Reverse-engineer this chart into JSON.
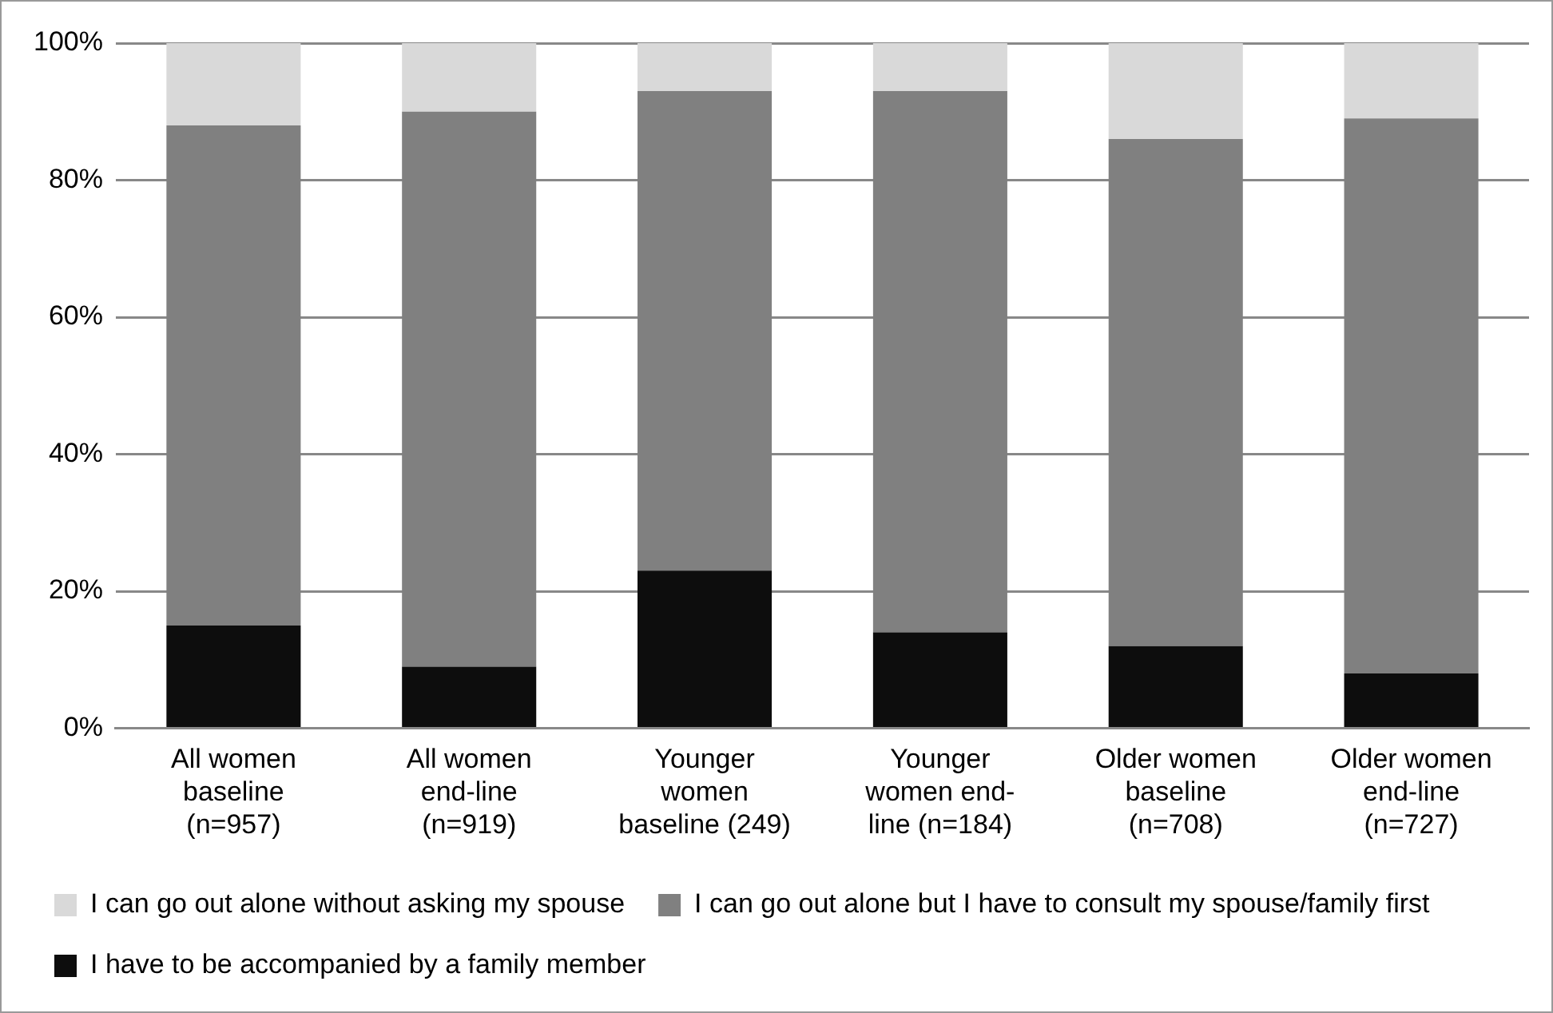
{
  "chart_data": {
    "type": "bar",
    "stacked": true,
    "categories": [
      "All women baseline (n=957)",
      "All women end-line (n=919)",
      "Younger women baseline (249)",
      "Younger women end-line (n=184)",
      "Older women baseline (n=708)",
      "Older women end-line (n=727)"
    ],
    "series": [
      {
        "name": "I have to be accompanied by a family member",
        "color": "#0d0d0d",
        "values": [
          15,
          9,
          23,
          14,
          12,
          8
        ]
      },
      {
        "name": "I can go out alone but I have to consult my spouse/family first",
        "color": "#808080",
        "values": [
          73,
          81,
          70,
          79,
          74,
          81
        ]
      },
      {
        "name": "I can go out alone without asking my spouse",
        "color": "#d9d9d9",
        "values": [
          12,
          10,
          7,
          7,
          14,
          11
        ]
      }
    ],
    "ylim": [
      0,
      100
    ],
    "yticks": [
      {
        "value": 0,
        "label": "0%"
      },
      {
        "value": 20,
        "label": "20%"
      },
      {
        "value": 40,
        "label": "40%"
      },
      {
        "value": 60,
        "label": "60%"
      },
      {
        "value": 80,
        "label": "80%"
      },
      {
        "value": 100,
        "label": "100%"
      }
    ],
    "grid": "y",
    "legend": "bottom"
  }
}
